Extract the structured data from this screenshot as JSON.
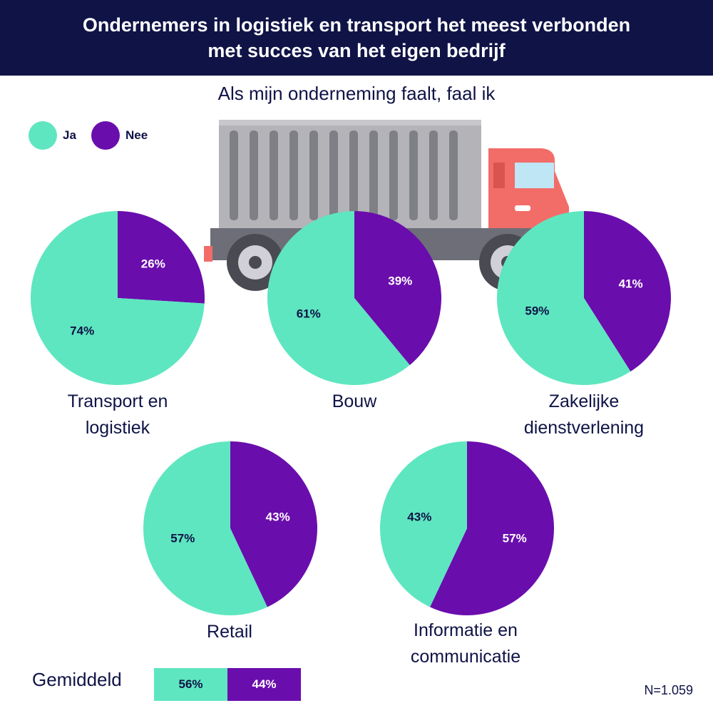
{
  "header": {
    "title_line1": "Ondernemers in logistiek en transport het meest verbonden",
    "title_line2": "met succes van het eigen bedrijf"
  },
  "subtitle": "Als mijn onderneming faalt, faal ik",
  "legend": [
    {
      "label": "Ja",
      "color": "#5ee6c0"
    },
    {
      "label": "Nee",
      "color": "#6a0dad"
    }
  ],
  "colors": {
    "ja": "#5ee6c0",
    "nee": "#6a0dad",
    "navy": "#0f1346",
    "white": "#ffffff"
  },
  "chart_data": {
    "type": "pie",
    "series_labels": [
      "Ja",
      "Nee"
    ],
    "charts": [
      {
        "category_line1": "Transport en",
        "category_line2": "logistiek",
        "ja": 74,
        "nee": 26,
        "ja_label": "74%",
        "nee_label": "26%"
      },
      {
        "category_line1": "Bouw",
        "category_line2": "",
        "ja": 61,
        "nee": 39,
        "ja_label": "61%",
        "nee_label": "39%"
      },
      {
        "category_line1": "Zakelijke",
        "category_line2": "dienstverlening",
        "ja": 59,
        "nee": 41,
        "ja_label": "59%",
        "nee_label": "41%"
      },
      {
        "category_line1": "Retail",
        "category_line2": "",
        "ja": 57,
        "nee": 43,
        "ja_label": "57%",
        "nee_label": "43%"
      },
      {
        "category_line1": "Informatie en",
        "category_line2": "communicatie",
        "ja": 43,
        "nee": 57,
        "ja_label": "43%",
        "nee_label": "57%"
      }
    ],
    "average": {
      "label": "Gemiddeld",
      "ja": 56,
      "nee": 44,
      "ja_label": "56%",
      "nee_label": "44%"
    }
  },
  "footnote": "N=1.059"
}
